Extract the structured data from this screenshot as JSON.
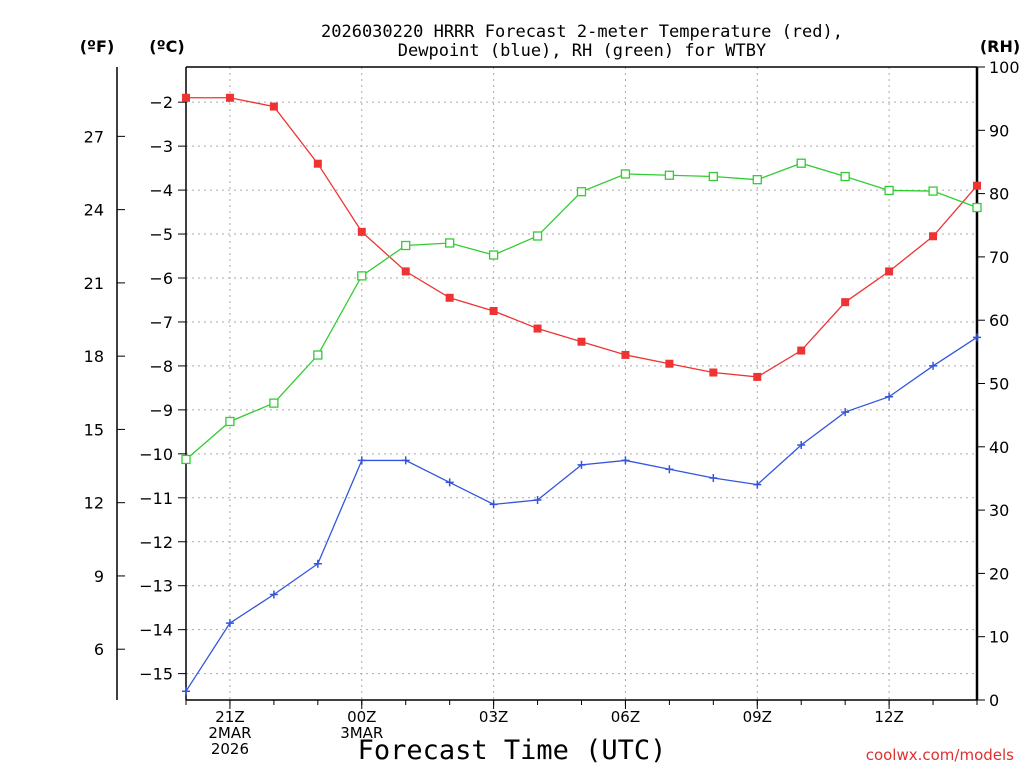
{
  "chart_data": {
    "type": "line",
    "title_line1": "2026030220 HRRR Forecast 2-meter Temperature (red),",
    "title_line2": "Dewpoint (blue), RH (green) for WTBY",
    "xlabel": "Forecast Time (UTC)",
    "watermark": "coolwx.com/models",
    "left_axis_f_label": "(ºF)",
    "left_axis_c_label": "(ºC)",
    "right_axis_label": "(RH)",
    "x_hours": [
      0,
      1,
      2,
      3,
      4,
      5,
      6,
      7,
      8,
      9,
      10,
      11,
      12,
      13,
      14,
      15,
      16,
      17,
      18
    ],
    "x_ticks": [
      {
        "hour": 1,
        "lines": [
          "21Z",
          "2MAR",
          "2026"
        ]
      },
      {
        "hour": 4,
        "lines": [
          "00Z",
          "3MAR"
        ]
      },
      {
        "hour": 7,
        "lines": [
          "03Z"
        ]
      },
      {
        "hour": 10,
        "lines": [
          "06Z"
        ]
      },
      {
        "hour": 13,
        "lines": [
          "09Z"
        ]
      },
      {
        "hour": 16,
        "lines": [
          "12Z"
        ]
      }
    ],
    "celsius_axis": {
      "range": [
        -15.6,
        -1.2
      ],
      "ticks": [
        -15,
        -14,
        -13,
        -12,
        -11,
        -10,
        -9,
        -8,
        -7,
        -6,
        -5,
        -4,
        -3,
        -2
      ],
      "tick_labels": [
        "−15",
        "−14",
        "−13",
        "−12",
        "−11",
        "−10",
        "−9",
        "−8",
        "−7",
        "−6",
        "−5",
        "−4",
        "−3",
        "−2"
      ]
    },
    "fahrenheit_axis": {
      "ticks": [
        6,
        9,
        12,
        15,
        18,
        21,
        24,
        27
      ],
      "tick_labels": [
        "6",
        "9",
        "12",
        "15",
        "18",
        "21",
        "24",
        "27"
      ]
    },
    "rh_axis": {
      "range": [
        0,
        100
      ],
      "ticks": [
        0,
        10,
        20,
        30,
        40,
        50,
        60,
        70,
        80,
        90,
        100
      ],
      "tick_labels": [
        "0",
        "10",
        "20",
        "30",
        "40",
        "50",
        "60",
        "70",
        "80",
        "90",
        "100"
      ]
    },
    "series": [
      {
        "name": "2-meter Temperature",
        "unit": "C",
        "axis": "celsius",
        "color": "#ee3333",
        "marker": "filled-square",
        "values": [
          -1.9,
          -1.9,
          -2.1,
          -3.4,
          -4.95,
          -5.85,
          -6.45,
          -6.75,
          -7.15,
          -7.45,
          -7.75,
          -7.95,
          -8.15,
          -8.25,
          -7.65,
          -6.55,
          -5.85,
          -5.05,
          -3.9
        ]
      },
      {
        "name": "Dewpoint",
        "unit": "C",
        "axis": "celsius",
        "color": "#3355dd",
        "marker": "plus",
        "values": [
          -15.4,
          -13.85,
          -13.2,
          -12.5,
          -10.15,
          -10.15,
          -10.65,
          -11.15,
          -11.05,
          -10.25,
          -10.15,
          -10.35,
          -10.55,
          -10.7,
          -9.8,
          -9.05,
          -8.7,
          -8.0,
          -7.35
        ]
      },
      {
        "name": "Relative Humidity",
        "unit": "%",
        "axis": "rh",
        "color": "#33cc33",
        "marker": "open-square",
        "values": [
          38,
          44,
          46.9,
          54.5,
          67,
          71.8,
          72.2,
          70.3,
          73.3,
          80.3,
          83.1,
          82.9,
          82.7,
          82.2,
          84.8,
          82.7,
          80.5,
          80.4,
          77.8
        ]
      }
    ]
  }
}
